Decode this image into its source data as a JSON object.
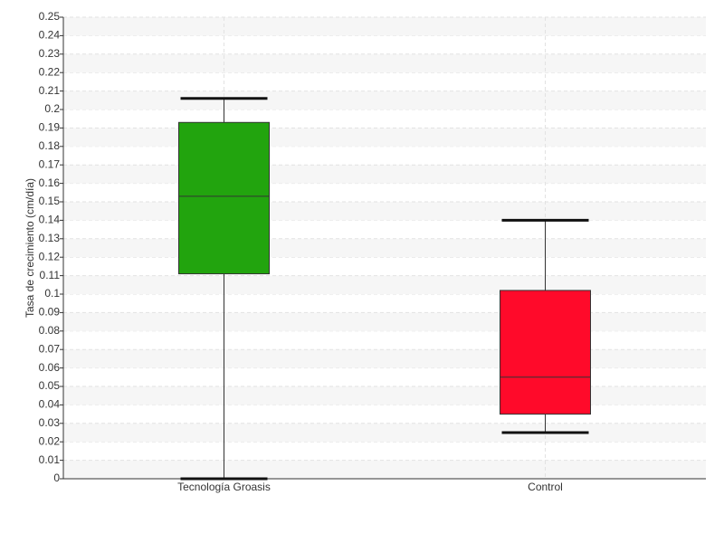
{
  "chart_data": {
    "type": "box",
    "y_label": "Tasa de crecimiento (cm/día)",
    "categories": [
      "Tecnología Groasis",
      "Control"
    ],
    "boxes": [
      {
        "color": "#22a40e",
        "min": 0,
        "q1": 0.111,
        "median": 0.153,
        "q3": 0.193,
        "max": 0.206
      },
      {
        "color": "#ff0a2a",
        "min": 0.025,
        "q1": 0.035,
        "median": 0.055,
        "q3": 0.102,
        "max": 0.14
      }
    ],
    "ylim": [
      0,
      0.25
    ],
    "yticks": [
      0,
      0.01,
      0.02,
      0.03,
      0.04,
      0.05,
      0.06,
      0.07,
      0.08,
      0.09,
      0.1,
      0.11,
      0.12,
      0.13,
      0.14,
      0.15,
      0.16,
      0.17,
      0.18,
      0.19,
      0.2,
      0.21,
      0.22,
      0.23,
      0.24,
      0.25
    ],
    "grid": true
  }
}
